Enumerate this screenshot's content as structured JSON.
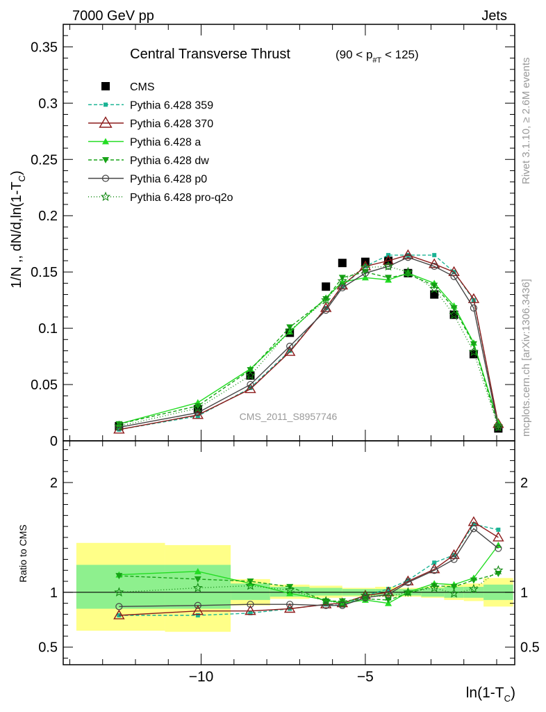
{
  "header": {
    "left": "7000 GeV pp",
    "right": "Jets"
  },
  "side_labels": {
    "rivet": "Rivet 3.1.10, ≥ 2.6M events",
    "mcplots": "mcplots.cern.ch [arXiv:1306.3436]"
  },
  "watermark": "CMS_2011_S8957746",
  "chart_data": [
    {
      "type": "line",
      "title": "Central Transverse Thrust",
      "title_sub": "(90 < p",
      "title_sub_index": "#T",
      "title_sub_end": " < 125)",
      "ylabel": "1/N ,, dN/d,ln(1-T",
      "ylabel_sub": "C",
      "ylabel_end": ")",
      "xlim": [
        -14.2,
        -0.45
      ],
      "ylim": [
        0,
        0.37
      ],
      "yticks": [
        0,
        0.05,
        0.1,
        0.15,
        0.2,
        0.25,
        0.3,
        0.35
      ],
      "ytick_labels": [
        "0",
        "0.05",
        "0.1",
        "0.15",
        "0.2",
        "0.25",
        "0.3",
        "0.35"
      ],
      "x": [
        -12.5,
        -10.1,
        -8.5,
        -7.3,
        -6.2,
        -5.7,
        -5.0,
        -4.3,
        -3.7,
        -2.9,
        -2.3,
        -1.7,
        -0.95
      ],
      "legend_position": "top-left",
      "series": [
        {
          "name": "CMS",
          "color": "#000000",
          "marker": "square",
          "dash": "none",
          "values": [
            0.013,
            0.028,
            0.058,
            0.096,
            0.137,
            0.158,
            0.159,
            0.16,
            0.149,
            0.13,
            0.112,
            0.077,
            0.011
          ]
        },
        {
          "name": "Pythia 6.428 359",
          "color": "#1ab394",
          "marker": "smallsquare",
          "dash": "5,3",
          "values": [
            0.01,
            0.022,
            0.047,
            0.08,
            0.118,
            0.137,
            0.155,
            0.165,
            0.165,
            0.165,
            0.15,
            0.125,
            0.015
          ]
        },
        {
          "name": "Pythia 6.428 370",
          "color": "#8b1a1a",
          "marker": "triangle-open",
          "dash": "none",
          "values": [
            0.01,
            0.023,
            0.046,
            0.079,
            0.118,
            0.138,
            0.155,
            0.16,
            0.165,
            0.157,
            0.15,
            0.126,
            0.015
          ]
        },
        {
          "name": "Pythia 6.428 a",
          "color": "#22dd22",
          "marker": "triangle",
          "dash": "none",
          "values": [
            0.015,
            0.034,
            0.064,
            0.097,
            0.127,
            0.141,
            0.145,
            0.143,
            0.149,
            0.14,
            0.12,
            0.087,
            0.016
          ]
        },
        {
          "name": "Pythia 6.428 dw",
          "color": "#17a317",
          "marker": "triangle-down",
          "dash": "5,3",
          "values": [
            0.015,
            0.031,
            0.063,
            0.101,
            0.126,
            0.145,
            0.15,
            0.145,
            0.148,
            0.138,
            0.118,
            0.086,
            0.013
          ]
        },
        {
          "name": "Pythia 6.428 p0",
          "color": "#444444",
          "marker": "circle-open",
          "dash": "none",
          "values": [
            0.012,
            0.025,
            0.05,
            0.084,
            0.116,
            0.136,
            0.149,
            0.155,
            0.163,
            0.155,
            0.146,
            0.118,
            0.012
          ]
        },
        {
          "name": "Pythia 6.428 pro-q2o",
          "color": "#118811",
          "marker": "star",
          "dash": "1,3",
          "values": [
            0.013,
            0.029,
            0.058,
            0.098,
            0.125,
            0.142,
            0.154,
            0.155,
            0.15,
            0.135,
            0.112,
            0.079,
            0.012
          ]
        }
      ]
    },
    {
      "type": "line",
      "ylabel": "Ratio to CMS",
      "xlabel": "ln(1-T",
      "xlabel_sub": "C",
      "xlabel_end": ")",
      "xlim": [
        -14.2,
        -0.45
      ],
      "ylim": [
        0.34,
        2.38
      ],
      "yticks": [
        0.5,
        1,
        2
      ],
      "ytick_labels": [
        "0.5",
        "1",
        "2"
      ],
      "xticks": [
        -10,
        -5
      ],
      "xtick_labels": [
        "−10",
        "−5"
      ],
      "x": [
        -12.5,
        -10.1,
        -8.5,
        -7.3,
        -6.2,
        -5.7,
        -5.0,
        -4.3,
        -3.7,
        -2.9,
        -2.3,
        -1.7,
        -0.95
      ],
      "bands": [
        {
          "x": [
            -13.8,
            -11.1
          ],
          "green": [
            0.85,
            1.25
          ],
          "yellow": [
            0.65,
            1.45
          ]
        },
        {
          "x": [
            -11.1,
            -9.1
          ],
          "green": [
            0.85,
            1.25
          ],
          "yellow": [
            0.64,
            1.43
          ]
        },
        {
          "x": [
            -9.1,
            -7.9
          ],
          "green": [
            0.93,
            1.08
          ],
          "yellow": [
            0.88,
            1.12
          ]
        },
        {
          "x": [
            -7.9,
            -6.7
          ],
          "green": [
            0.96,
            1.05
          ],
          "yellow": [
            0.94,
            1.07
          ]
        },
        {
          "x": [
            -6.7,
            -5.7
          ],
          "green": [
            0.97,
            1.04
          ],
          "yellow": [
            0.95,
            1.06
          ]
        },
        {
          "x": [
            -5.7,
            -4.7
          ],
          "green": [
            0.97,
            1.03
          ],
          "yellow": [
            0.96,
            1.04
          ]
        },
        {
          "x": [
            -4.7,
            -4.0
          ],
          "green": [
            0.97,
            1.03
          ],
          "yellow": [
            0.96,
            1.05
          ]
        },
        {
          "x": [
            -4.0,
            -3.3
          ],
          "green": [
            0.97,
            1.03
          ],
          "yellow": [
            0.96,
            1.04
          ]
        },
        {
          "x": [
            -3.3,
            -2.6
          ],
          "green": [
            0.96,
            1.04
          ],
          "yellow": [
            0.95,
            1.05
          ]
        },
        {
          "x": [
            -2.6,
            -2.0
          ],
          "green": [
            0.95,
            1.05
          ],
          "yellow": [
            0.93,
            1.07
          ]
        },
        {
          "x": [
            -2.0,
            -1.4
          ],
          "green": [
            0.95,
            1.05
          ],
          "yellow": [
            0.92,
            1.08
          ]
        },
        {
          "x": [
            -1.4,
            -0.5
          ],
          "green": [
            0.93,
            1.07
          ],
          "yellow": [
            0.87,
            1.13
          ]
        }
      ],
      "series": [
        {
          "name": "Pythia 6.428 359",
          "values": [
            0.79,
            0.79,
            0.81,
            0.85,
            0.89,
            0.88,
            0.97,
            1.03,
            1.11,
            1.27,
            1.34,
            1.62,
            1.57
          ]
        },
        {
          "name": "Pythia 6.428 370",
          "values": [
            0.79,
            0.83,
            0.83,
            0.85,
            0.89,
            0.9,
            0.97,
            1.0,
            1.1,
            1.21,
            1.34,
            1.64,
            1.5
          ]
        },
        {
          "name": "Pythia 6.428 a",
          "values": [
            1.16,
            1.19,
            1.08,
            0.99,
            0.93,
            0.9,
            0.93,
            0.9,
            1.0,
            1.08,
            1.07,
            1.13,
            1.43
          ]
        },
        {
          "name": "Pythia 6.428 dw",
          "values": [
            1.15,
            1.12,
            1.1,
            1.05,
            0.92,
            0.92,
            0.94,
            0.93,
            0.99,
            1.06,
            1.05,
            1.11,
            1.17
          ]
        },
        {
          "name": "Pythia 6.428 p0",
          "values": [
            0.87,
            0.88,
            0.89,
            0.89,
            0.88,
            0.88,
            0.95,
            0.98,
            1.09,
            1.2,
            1.3,
            1.58,
            1.4
          ]
        },
        {
          "name": "Pythia 6.428 pro-q2o",
          "values": [
            1.0,
            1.04,
            1.06,
            1.02,
            0.92,
            0.9,
            0.97,
            0.96,
            1.0,
            1.04,
            0.99,
            1.03,
            1.2
          ]
        }
      ]
    }
  ]
}
